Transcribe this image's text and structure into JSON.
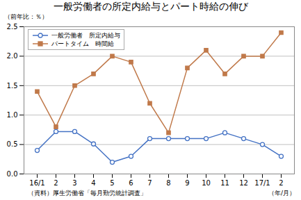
{
  "chart_data": {
    "type": "line",
    "title": "一般労働者の所定内給与とパート時給の伸び",
    "ylabel": "（前年比：％）",
    "xlabel": "（年/月）",
    "annotations": [
      "（資料）厚生労働省「毎月勤労統計調査」"
    ],
    "categories": [
      "16/1",
      "2",
      "3",
      "4",
      "5",
      "6",
      "7",
      "8",
      "9",
      "10",
      "11",
      "12",
      "17/1",
      "2"
    ],
    "series": [
      {
        "name": "一般労働者　所定内給与",
        "color": "#4472C4",
        "marker": "open_circle",
        "values": [
          0.4,
          0.72,
          0.72,
          0.51,
          0.2,
          0.3,
          0.6,
          0.6,
          0.6,
          0.6,
          0.7,
          0.6,
          0.5,
          0.3
        ]
      },
      {
        "name": "パートタイム　時間給",
        "color": "#C0794A",
        "marker": "square",
        "values": [
          1.4,
          0.8,
          1.5,
          1.7,
          2.0,
          1.9,
          1.2,
          0.7,
          1.8,
          2.1,
          1.7,
          2.0,
          2.0,
          2.4
        ]
      }
    ],
    "ylim": [
      0.0,
      2.5
    ],
    "yticks": [
      {
        "value": 0,
        "label": "0.0"
      },
      0.5,
      {
        "value": 1,
        "label": "1.0"
      },
      1.5,
      {
        "value": 2,
        "label": "2.0"
      },
      2.5
    ],
    "grid": "y",
    "legend": "upper left"
  }
}
